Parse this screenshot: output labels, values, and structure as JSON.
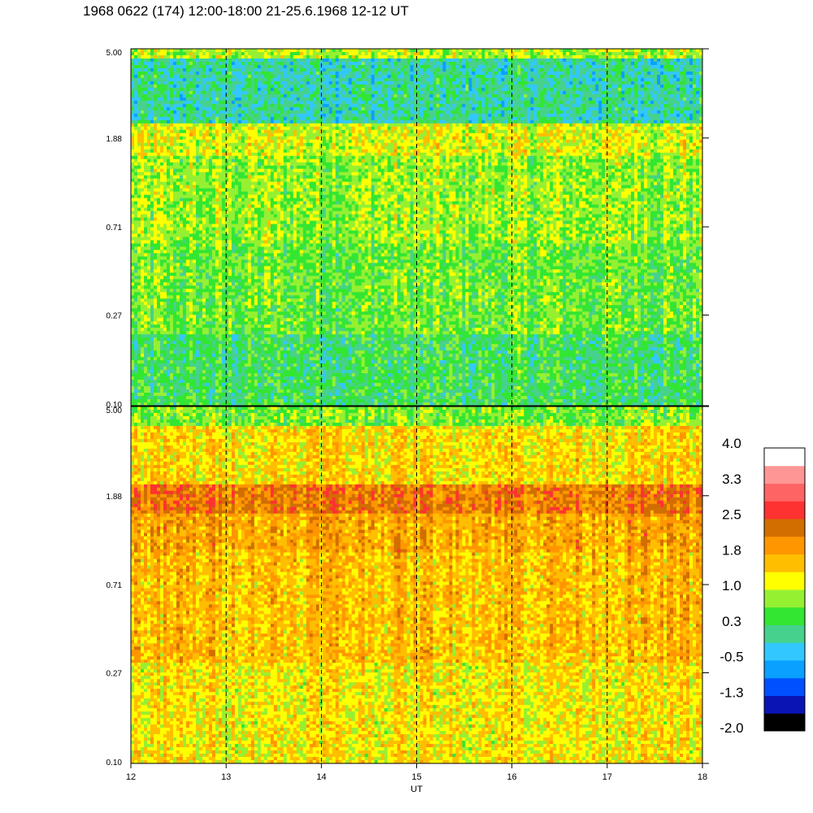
{
  "title": "1968 0622 (174) 12:00-18:00 21-25.6.1968  12-12 UT",
  "chart_data": {
    "type": "heatmap",
    "xlabel": "UT",
    "x_ticks": [
      "12",
      "13",
      "14",
      "15",
      "16",
      "17",
      "18"
    ],
    "xlim": [
      12,
      18
    ],
    "dashed_gridlines_x": [
      13,
      14,
      15,
      16,
      17
    ],
    "log_y": true,
    "panels": [
      {
        "name": "upper",
        "y_ticks": [
          "0.10",
          "0.27",
          "0.71",
          "1.88",
          "5.00"
        ],
        "ylim": [
          0.1,
          5.0
        ],
        "bands": [
          {
            "y_from": 0.1,
            "y_to": 0.22,
            "dominant_value": 0.3,
            "notes": "cyan/blue patches near 14.2-15.3 and 16.8-17.0"
          },
          {
            "y_from": 0.22,
            "y_to": 0.6,
            "dominant_value": 0.6
          },
          {
            "y_from": 0.6,
            "y_to": 1.55,
            "dominant_value": 0.8
          },
          {
            "y_from": 1.55,
            "y_to": 2.2,
            "dominant_value": 1.1,
            "notes": "yellow horizontal band near 1.88"
          },
          {
            "y_from": 2.2,
            "y_to": 4.5,
            "dominant_value": 0.0,
            "notes": "cyan/blue streaks near 13.0-13.3 and 13.8-14.5"
          },
          {
            "y_from": 4.5,
            "y_to": 5.0,
            "dominant_value": 0.9,
            "notes": "thin yellow line near top"
          }
        ]
      },
      {
        "name": "lower",
        "y_ticks": [
          "0.10",
          "0.27",
          "0.71",
          "1.88",
          "5.00"
        ],
        "ylim": [
          0.1,
          5.0
        ],
        "bands": [
          {
            "y_from": 0.1,
            "y_to": 0.3,
            "dominant_value": 1.3,
            "notes": "red streak at 12.15-12.22"
          },
          {
            "y_from": 0.3,
            "y_to": 1.0,
            "dominant_value": 1.6
          },
          {
            "y_from": 1.0,
            "y_to": 1.55,
            "dominant_value": 1.8,
            "notes": "red patch near 16.7-17.0, 1.0-1.4"
          },
          {
            "y_from": 1.55,
            "y_to": 2.1,
            "dominant_value": 2.2,
            "notes": "dark orange band near 1.88"
          },
          {
            "y_from": 2.1,
            "y_to": 4.0,
            "dominant_value": 1.4
          },
          {
            "y_from": 4.0,
            "y_to": 5.0,
            "dominant_value": 0.7
          }
        ]
      }
    ],
    "colorbar": {
      "labels": [
        "4.0",
        "3.3",
        "2.5",
        "1.8",
        "1.0",
        "0.3",
        "-0.5",
        "-1.3",
        "-2.0"
      ],
      "range": [
        -2.0,
        4.0
      ],
      "colors": [
        "#000000",
        "#0a14b4",
        "#0050ff",
        "#0aa0ff",
        "#32c8ff",
        "#46d28c",
        "#32e632",
        "#96f032",
        "#ffff00",
        "#ffbe00",
        "#ff9600",
        "#d26e00",
        "#ff3232",
        "#ff6464",
        "#ff9696",
        "#ffffff"
      ]
    }
  }
}
